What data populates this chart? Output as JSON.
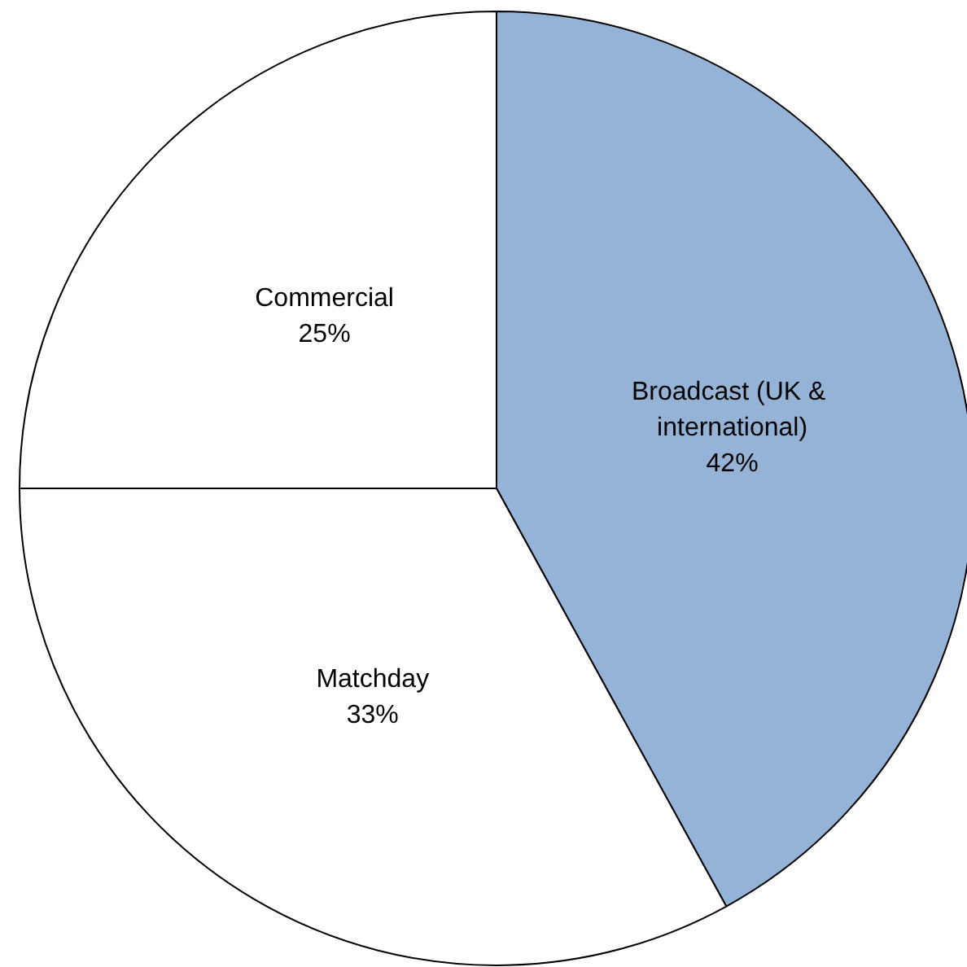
{
  "chart_data": {
    "type": "pie",
    "categories": [
      "Broadcast (UK & international)",
      "Matchday",
      "Commercial"
    ],
    "values": [
      42,
      33,
      25
    ],
    "colors": [
      "#95b3d7",
      "#ffffff",
      "#ffffff"
    ],
    "value_labels": [
      "42%",
      "33%",
      "25%"
    ],
    "legend": false
  }
}
